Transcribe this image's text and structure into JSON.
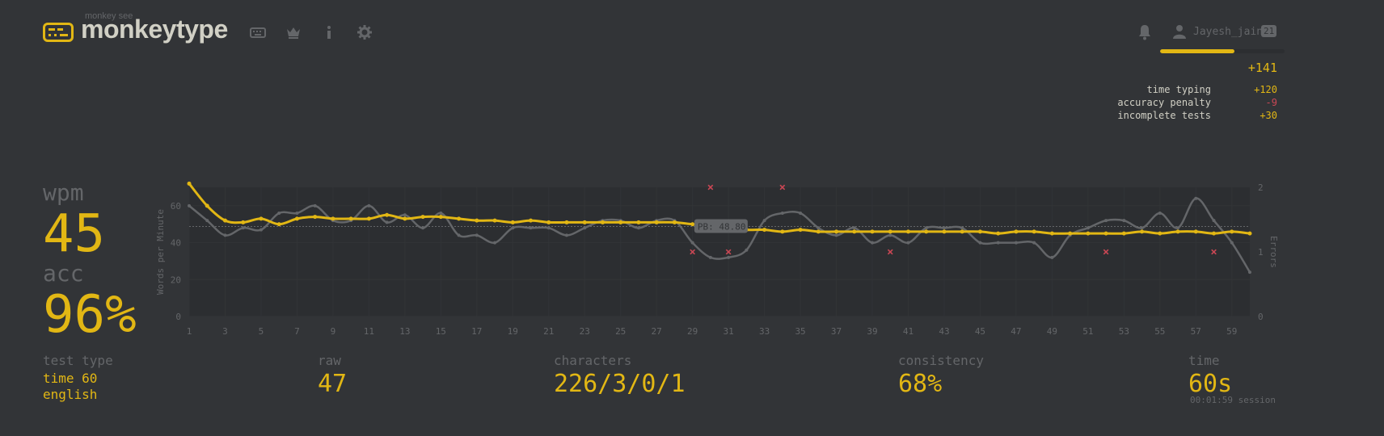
{
  "header": {
    "tagline": "monkey see",
    "app_name": "monkeytype",
    "nav": [
      "keyboard-icon",
      "crown-icon",
      "info-icon",
      "gear-icon"
    ]
  },
  "account": {
    "username": "Jayesh_jain",
    "level": "21",
    "xp_progress_fraction": 0.6,
    "xp_gained": "+141",
    "breakdown": [
      {
        "label": "time typing",
        "value": "+120"
      },
      {
        "label": "accuracy penalty",
        "value": "-9"
      },
      {
        "label": "incomplete tests",
        "value": "+30"
      }
    ]
  },
  "stats": {
    "wpm_label": "wpm",
    "wpm": "45",
    "acc_label": "acc",
    "acc": "96%"
  },
  "bottom": {
    "test_type_label": "test type",
    "test_type_mode": "time 60",
    "test_type_language": "english",
    "raw_label": "raw",
    "raw": "47",
    "characters_label": "characters",
    "characters": "226/3/0/1",
    "consistency_label": "consistency",
    "consistency": "68%",
    "time_label": "time",
    "time": "60s",
    "session": "00:01:59 session"
  },
  "chart_data": {
    "type": "line",
    "ylabel": "Words per Minute",
    "y2label": "Errors",
    "ylim": [
      0,
      70
    ],
    "y2lim": [
      0,
      2
    ],
    "yticks": [
      0,
      20,
      40,
      60
    ],
    "y2ticks": [
      0,
      1,
      2
    ],
    "xlim": [
      1,
      60
    ],
    "xticks": [
      1,
      3,
      5,
      7,
      9,
      11,
      13,
      15,
      17,
      19,
      21,
      23,
      25,
      27,
      29,
      31,
      33,
      35,
      37,
      39,
      41,
      43,
      45,
      47,
      49,
      51,
      53,
      55,
      57,
      59
    ],
    "pb": 48.8,
    "pb_label": "PB: 48.80",
    "x": [
      1,
      2,
      3,
      4,
      5,
      6,
      7,
      8,
      9,
      10,
      11,
      12,
      13,
      14,
      15,
      16,
      17,
      18,
      19,
      20,
      21,
      22,
      23,
      24,
      25,
      26,
      27,
      28,
      29,
      30,
      31,
      32,
      33,
      34,
      35,
      36,
      37,
      38,
      39,
      40,
      41,
      42,
      43,
      44,
      45,
      46,
      47,
      48,
      49,
      50,
      51,
      52,
      53,
      54,
      55,
      56,
      57,
      58,
      59,
      60
    ],
    "series": [
      {
        "name": "wpm",
        "color": "#e2b714",
        "values": [
          72,
          60,
          52,
          51,
          53,
          50,
          53,
          54,
          53,
          53,
          53,
          55,
          53,
          54,
          54,
          53,
          52,
          52,
          51,
          52,
          51,
          51,
          51,
          51,
          51,
          51,
          51,
          51,
          50,
          49,
          48,
          47,
          47,
          46,
          47,
          46,
          46,
          46,
          46,
          46,
          46,
          46,
          46,
          46,
          46,
          45,
          46,
          46,
          45,
          45,
          45,
          45,
          45,
          46,
          45,
          46,
          46,
          45,
          46,
          45
        ]
      },
      {
        "name": "raw",
        "color": "#646669",
        "values": [
          60,
          52,
          44,
          48,
          47,
          56,
          56,
          60,
          52,
          52,
          60,
          51,
          55,
          48,
          56,
          44,
          44,
          40,
          48,
          48,
          48,
          44,
          48,
          52,
          52,
          48,
          52,
          52,
          40,
          32,
          32,
          36,
          52,
          56,
          56,
          48,
          44,
          48,
          40,
          44,
          40,
          48,
          48,
          48,
          40,
          40,
          40,
          40,
          32,
          44,
          48,
          52,
          52,
          48,
          56,
          48,
          64,
          52,
          40,
          24
        ]
      }
    ],
    "error_points": [
      {
        "x": 29,
        "y": 1
      },
      {
        "x": 30,
        "y": 2
      },
      {
        "x": 31,
        "y": 1
      },
      {
        "x": 34,
        "y": 2
      },
      {
        "x": 40,
        "y": 1
      },
      {
        "x": 52,
        "y": 1
      },
      {
        "x": 58,
        "y": 1
      }
    ]
  }
}
